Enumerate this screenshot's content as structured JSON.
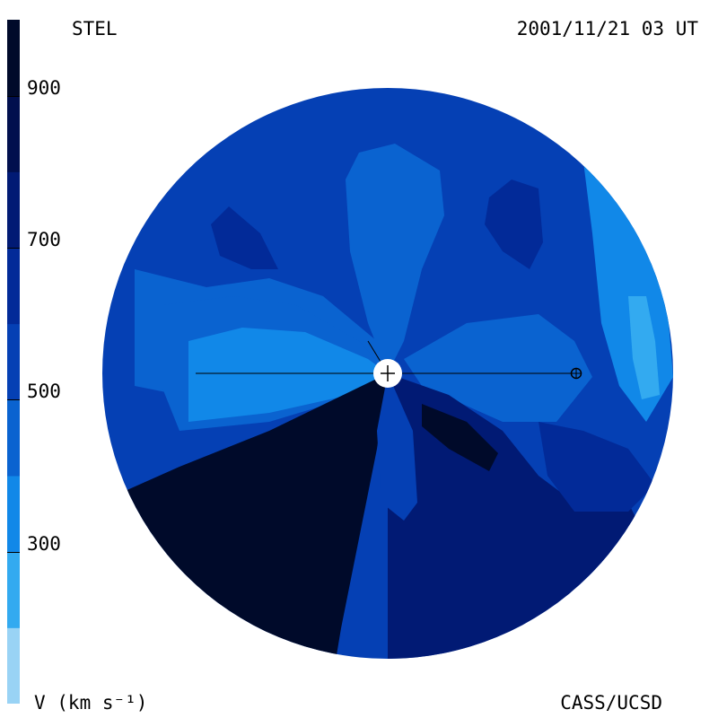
{
  "header": {
    "source": "STEL",
    "timestamp": "2001/11/21 03 UT"
  },
  "footer": {
    "unit": "V (km s⁻¹)",
    "credit": "CASS/UCSD"
  },
  "chart_data": {
    "type": "heatmap",
    "title": "",
    "quantity": "solar wind speed",
    "colorbar": {
      "range": [
        100,
        1000
      ],
      "ticks": [
        300,
        500,
        700,
        900
      ],
      "tick_labels": [
        "300",
        "500",
        "700",
        "900"
      ],
      "levels": [
        {
          "from": 100,
          "to": 200,
          "color": "#99d3f5"
        },
        {
          "from": 200,
          "to": 300,
          "color": "#33aaf0"
        },
        {
          "from": 300,
          "to": 400,
          "color": "#1188e8"
        },
        {
          "from": 400,
          "to": 500,
          "color": "#0a63d0"
        },
        {
          "from": 500,
          "to": 600,
          "color": "#0540b4"
        },
        {
          "from": 600,
          "to": 700,
          "color": "#022a98"
        },
        {
          "from": 700,
          "to": 800,
          "color": "#011a74"
        },
        {
          "from": 800,
          "to": 900,
          "color": "#010f4e"
        },
        {
          "from": 900,
          "to": 1000,
          "color": "#000a2a"
        }
      ]
    },
    "regions": [
      {
        "name": "north-west-lobe",
        "level": 500
      },
      {
        "name": "central-light-band",
        "level": 400
      },
      {
        "name": "north-central-plume",
        "level": 400
      },
      {
        "name": "west-light-core",
        "level": 300
      },
      {
        "name": "east-light-edge",
        "level": 300
      },
      {
        "name": "north-west-dark-spot",
        "level": 600
      },
      {
        "name": "north-east-dark-spot",
        "level": 600
      },
      {
        "name": "south-dark-sector",
        "level": 900
      },
      {
        "name": "south-east-sector",
        "level": 700
      },
      {
        "name": "east-dark-lobe",
        "level": 700
      }
    ],
    "markers": [
      {
        "name": "sun",
        "symbol": "circle-plus"
      },
      {
        "name": "earth",
        "symbol": "circled-plus"
      }
    ]
  }
}
